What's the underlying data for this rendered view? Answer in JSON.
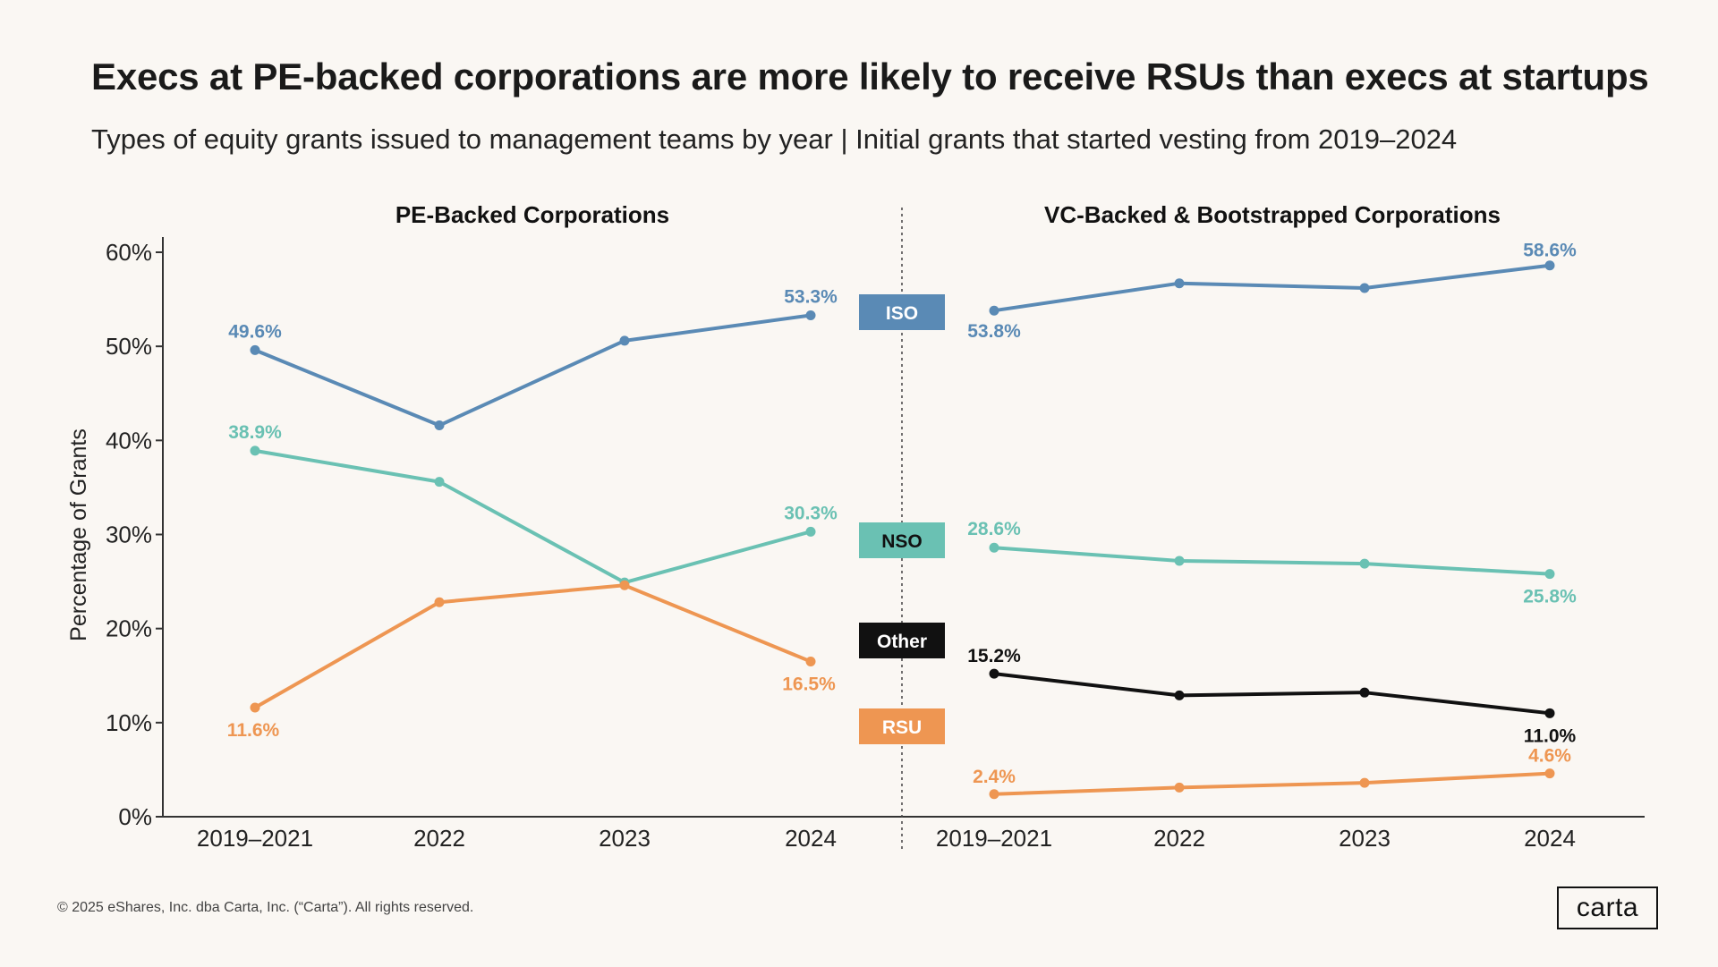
{
  "title": "Execs at PE-backed corporations are more likely to receive RSUs than execs at startups",
  "subtitle": "Types of equity grants issued to management teams by year | Initial grants that started vesting from 2019–2024",
  "footer": {
    "copyright": "© 2025 eShares, Inc. dba Carta, Inc. (“Carta”). All rights reserved.",
    "logo_text": "carta"
  },
  "colors": {
    "ISO": "#5a8ab5",
    "NSO": "#6ac1b3",
    "Other": "#111111",
    "RSU": "#ee9652",
    "axis": "#333333",
    "background": "#faf7f3"
  },
  "legend": [
    "ISO",
    "NSO",
    "Other",
    "RSU"
  ],
  "chart_data": {
    "type": "line",
    "ylabel": "Percentage of Grants",
    "ylim": [
      0,
      60
    ],
    "yticks": [
      0,
      10,
      20,
      30,
      40,
      50,
      60
    ],
    "ytick_labels": [
      "0%",
      "10%",
      "20%",
      "30%",
      "40%",
      "50%",
      "60%"
    ],
    "categories": [
      "2019–2021",
      "2022",
      "2023",
      "2024"
    ],
    "panels": [
      {
        "title": "PE-Backed Corporations",
        "series": [
          {
            "name": "ISO",
            "values": [
              49.6,
              41.6,
              50.6,
              53.3
            ],
            "labels": [
              "49.6%",
              "",
              "",
              "53.3%"
            ]
          },
          {
            "name": "NSO",
            "values": [
              38.9,
              35.6,
              24.9,
              30.3
            ],
            "labels": [
              "38.9%",
              "",
              "",
              "30.3%"
            ]
          },
          {
            "name": "RSU",
            "values": [
              11.6,
              22.8,
              24.6,
              16.5
            ],
            "labels": [
              "11.6%",
              "",
              "",
              "16.5%"
            ]
          }
        ]
      },
      {
        "title": "VC-Backed & Bootstrapped Corporations",
        "series": [
          {
            "name": "ISO",
            "values": [
              53.8,
              56.7,
              56.2,
              58.6
            ],
            "labels": [
              "53.8%",
              "",
              "",
              "58.6%"
            ]
          },
          {
            "name": "NSO",
            "values": [
              28.6,
              27.2,
              26.9,
              25.8
            ],
            "labels": [
              "28.6%",
              "",
              "",
              "25.8%"
            ]
          },
          {
            "name": "Other",
            "values": [
              15.2,
              12.9,
              13.2,
              11.0
            ],
            "labels": [
              "15.2%",
              "",
              "",
              "11.0%"
            ]
          },
          {
            "name": "RSU",
            "values": [
              2.4,
              3.1,
              3.6,
              4.6
            ],
            "labels": [
              "2.4%",
              "",
              "",
              "4.6%"
            ]
          }
        ]
      }
    ]
  }
}
